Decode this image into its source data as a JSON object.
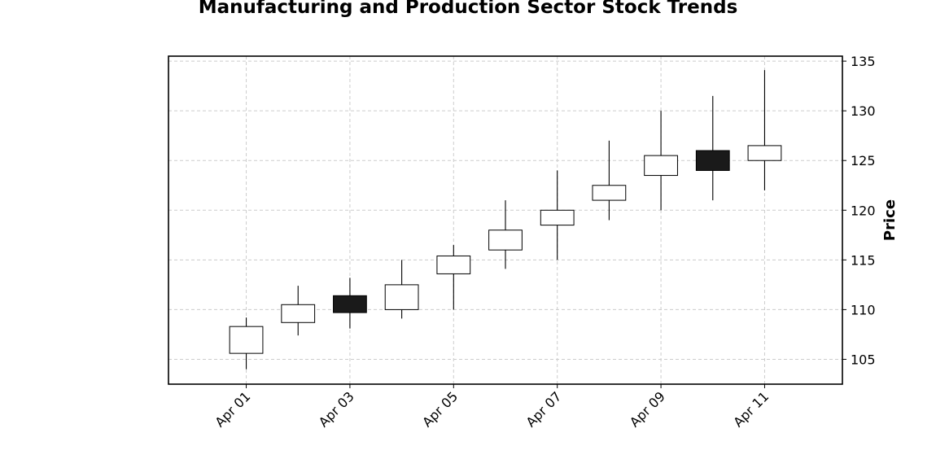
{
  "chart_data": {
    "type": "candlestick",
    "title": "Manufacturing and Production Sector Stock Trends",
    "xlabel": "",
    "ylabel": "Price",
    "ylim": [
      102.5,
      135.5
    ],
    "xlim": [
      -1.5,
      11.5
    ],
    "y_ticks": [
      105,
      110,
      115,
      120,
      125,
      130,
      135
    ],
    "x_ticks": [
      {
        "index": 0,
        "label": "Apr 01"
      },
      {
        "index": 2,
        "label": "Apr 03"
      },
      {
        "index": 4,
        "label": "Apr 05"
      },
      {
        "index": 6,
        "label": "Apr 07"
      },
      {
        "index": 8,
        "label": "Apr 09"
      },
      {
        "index": 10,
        "label": "Apr 11"
      }
    ],
    "y_axis_side": "right",
    "grid": true,
    "grid_style": "dashed",
    "colors": {
      "up": "#ffffff",
      "down": "#1a1a1a",
      "edge": "#000000",
      "grid": "#cccccc"
    },
    "candles": [
      {
        "date": "Apr 01",
        "open": 105.6,
        "high": 109.2,
        "low": 104.0,
        "close": 108.3
      },
      {
        "date": "Apr 02",
        "open": 108.7,
        "high": 112.4,
        "low": 107.4,
        "close": 110.5
      },
      {
        "date": "Apr 03",
        "open": 111.4,
        "high": 113.2,
        "low": 108.1,
        "close": 109.7
      },
      {
        "date": "Apr 04",
        "open": 110.0,
        "high": 115.0,
        "low": 109.1,
        "close": 112.5
      },
      {
        "date": "Apr 05",
        "open": 113.6,
        "high": 116.5,
        "low": 110.0,
        "close": 115.4
      },
      {
        "date": "Apr 06",
        "open": 116.0,
        "high": 121.0,
        "low": 114.1,
        "close": 118.0
      },
      {
        "date": "Apr 07",
        "open": 118.5,
        "high": 124.0,
        "low": 115.0,
        "close": 120.0
      },
      {
        "date": "Apr 08",
        "open": 121.0,
        "high": 127.0,
        "low": 119.0,
        "close": 122.5
      },
      {
        "date": "Apr 09",
        "open": 123.5,
        "high": 130.0,
        "low": 120.0,
        "close": 125.5
      },
      {
        "date": "Apr 10",
        "open": 126.0,
        "high": 131.5,
        "low": 121.0,
        "close": 124.0
      },
      {
        "date": "Apr 11",
        "open": 125.0,
        "high": 134.1,
        "low": 122.0,
        "close": 126.5
      }
    ]
  }
}
